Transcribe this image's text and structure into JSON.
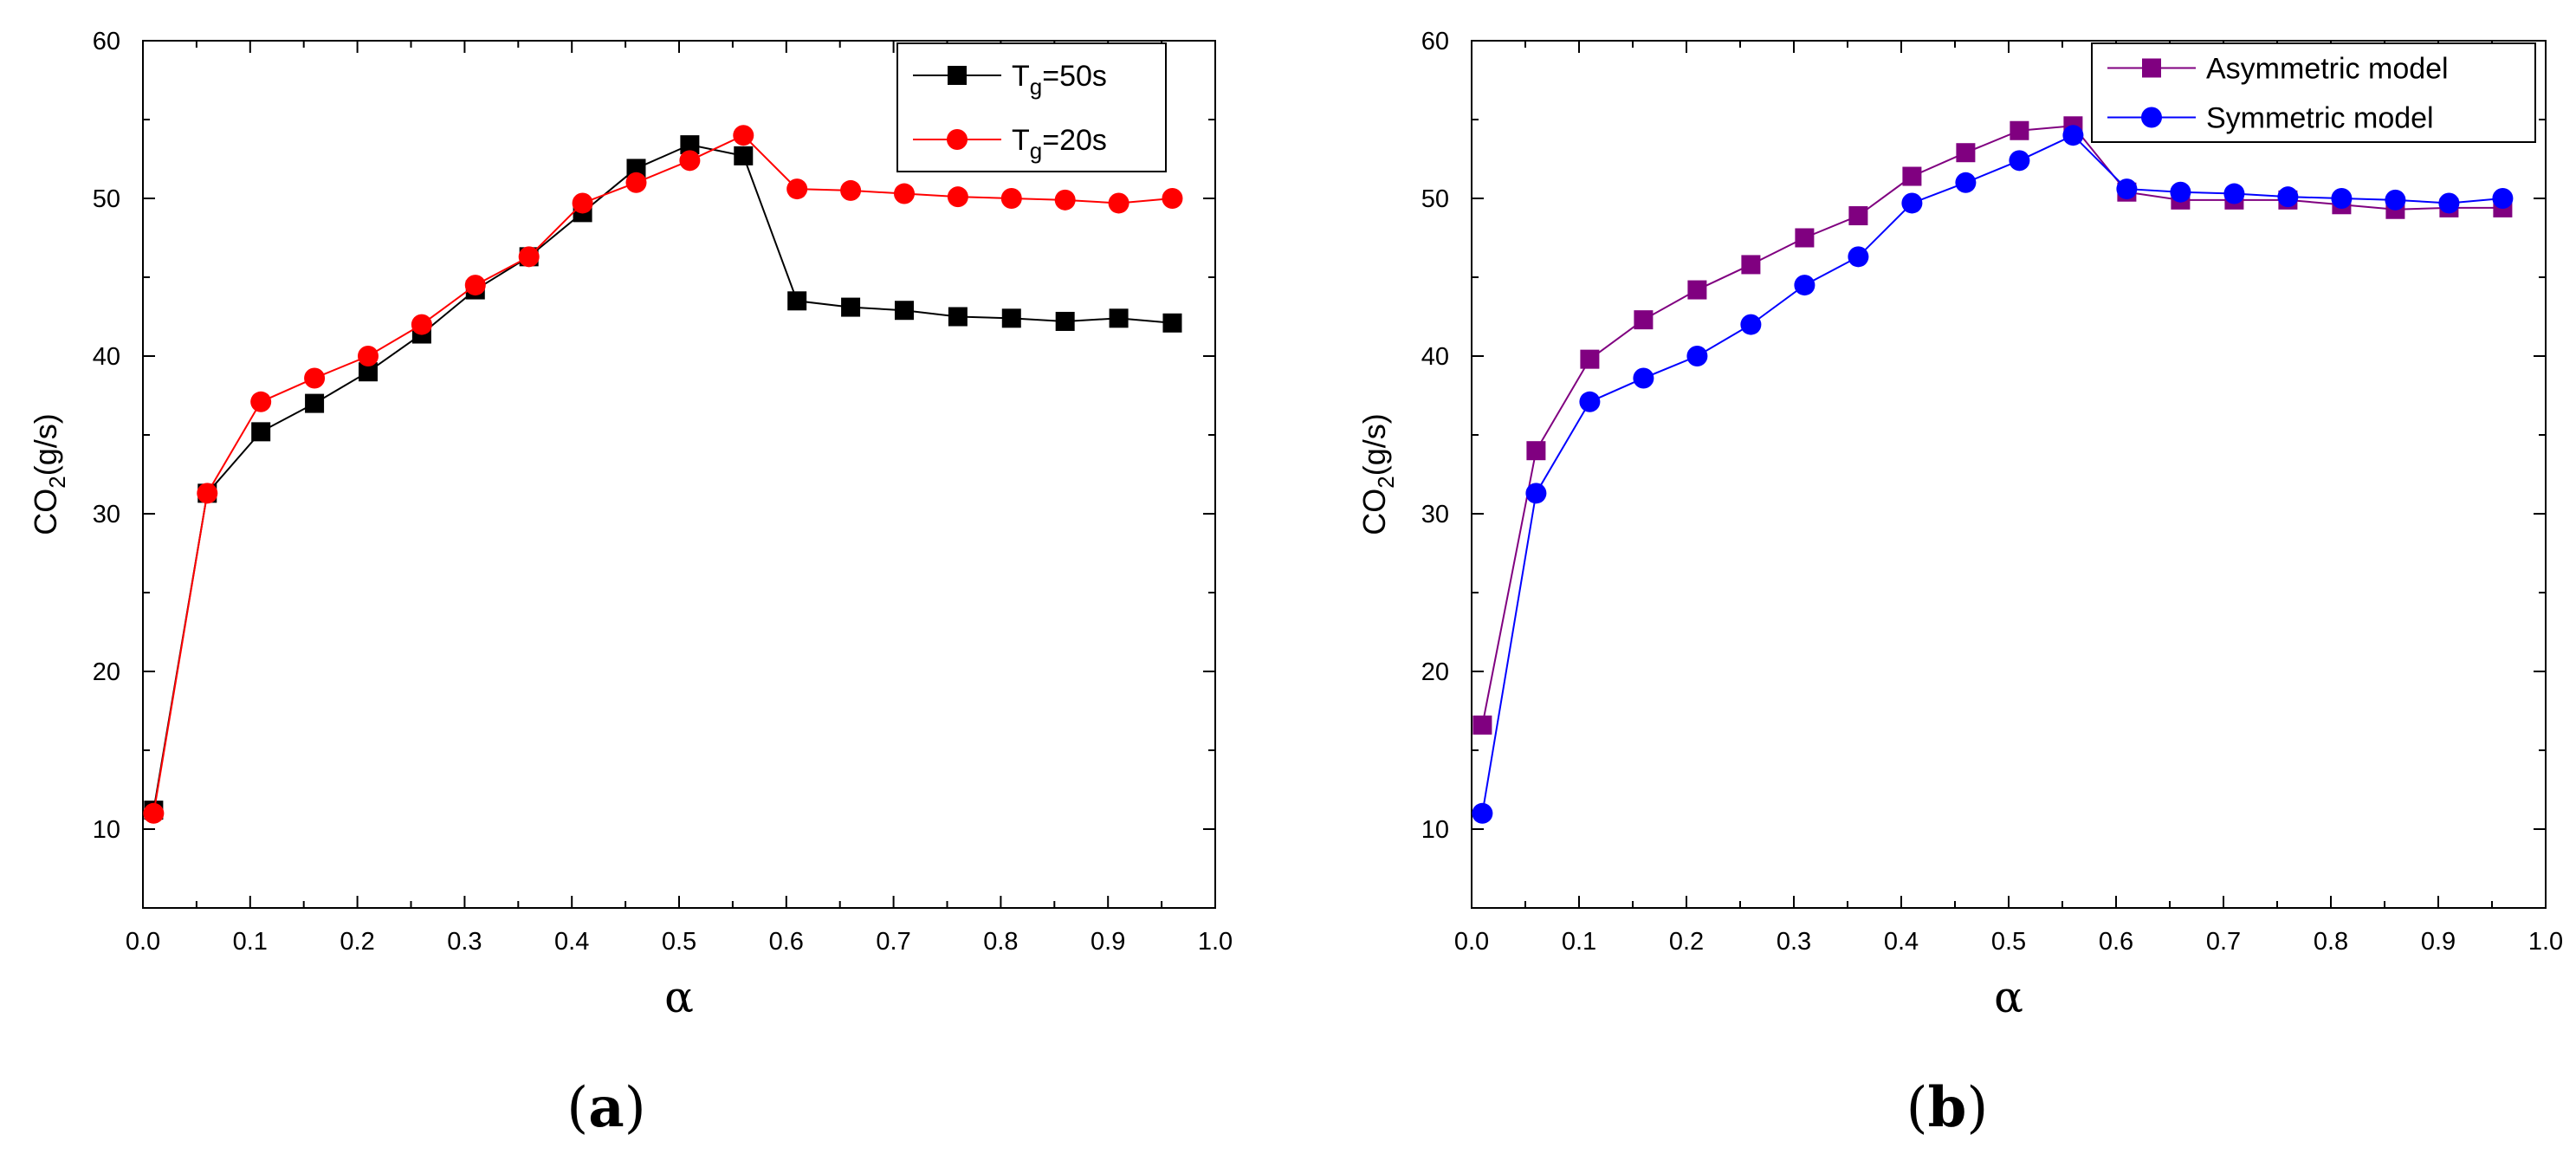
{
  "chart_data": [
    {
      "type": "line",
      "panel_label": "(a)",
      "panel_open": "(",
      "panel_letter": "a",
      "panel_close": ")",
      "xlabel": "α",
      "ylabel": "CO",
      "ylabel_sub": "2",
      "ylabel_unit": "(g/s)",
      "xlim": [
        0.0,
        1.0
      ],
      "ylim": [
        5,
        60
      ],
      "xticks": [
        "0.0",
        "0.1",
        "0.2",
        "0.3",
        "0.4",
        "0.5",
        "0.6",
        "0.7",
        "0.8",
        "0.9",
        "1.0"
      ],
      "yticks": [
        "10",
        "20",
        "30",
        "40",
        "50",
        "60"
      ],
      "legend_position": "top-right",
      "x": [
        0.01,
        0.06,
        0.11,
        0.16,
        0.21,
        0.26,
        0.31,
        0.36,
        0.41,
        0.46,
        0.51,
        0.56,
        0.61,
        0.66,
        0.71,
        0.76,
        0.81,
        0.86,
        0.91,
        0.96
      ],
      "series": [
        {
          "name": "Tg=50s",
          "legend_main": "T",
          "legend_sub": "g",
          "legend_rest": "=50s",
          "color": "#000000",
          "marker": "square",
          "values": [
            11.2,
            31.3,
            35.2,
            37.0,
            39.0,
            41.4,
            44.2,
            46.3,
            49.1,
            51.9,
            53.4,
            52.7,
            43.5,
            43.1,
            42.9,
            42.5,
            42.4,
            42.2,
            42.4,
            42.1
          ]
        },
        {
          "name": "Tg=20s",
          "legend_main": "T",
          "legend_sub": "g",
          "legend_rest": "=20s",
          "color": "#ff0000",
          "marker": "circle",
          "values": [
            11.0,
            31.3,
            37.1,
            38.6,
            40.0,
            42.0,
            44.5,
            46.3,
            49.7,
            51.0,
            52.4,
            54.0,
            50.6,
            50.5,
            50.3,
            50.1,
            50.0,
            49.9,
            49.7,
            50.0
          ]
        }
      ]
    },
    {
      "type": "line",
      "panel_label": "(b)",
      "panel_open": "(",
      "panel_letter": "b",
      "panel_close": ")",
      "xlabel": "α",
      "ylabel": "CO",
      "ylabel_sub": "2",
      "ylabel_unit": "(g/s)",
      "xlim": [
        0.0,
        1.0
      ],
      "ylim": [
        5,
        60
      ],
      "xticks": [
        "0.0",
        "0.1",
        "0.2",
        "0.3",
        "0.4",
        "0.5",
        "0.6",
        "0.7",
        "0.8",
        "0.9",
        "1.0"
      ],
      "yticks": [
        "10",
        "20",
        "30",
        "40",
        "50",
        "60"
      ],
      "legend_position": "top-right",
      "x": [
        0.01,
        0.06,
        0.11,
        0.16,
        0.21,
        0.26,
        0.31,
        0.36,
        0.41,
        0.46,
        0.51,
        0.56,
        0.61,
        0.66,
        0.71,
        0.76,
        0.81,
        0.86,
        0.91,
        0.96
      ],
      "series": [
        {
          "name": "Asymmetric model",
          "legend_main": "Asymmetric model",
          "legend_sub": "",
          "legend_rest": "",
          "color": "#800080",
          "marker": "square",
          "values": [
            16.6,
            34.0,
            39.8,
            42.3,
            44.2,
            45.8,
            47.5,
            48.9,
            51.4,
            52.9,
            54.3,
            54.6,
            50.4,
            49.9,
            49.9,
            49.9,
            49.6,
            49.3,
            49.4,
            49.4
          ]
        },
        {
          "name": "Symmetric model",
          "legend_main": "Symmetric model",
          "legend_sub": "",
          "legend_rest": "",
          "color": "#0000ff",
          "marker": "circle",
          "values": [
            11.0,
            31.3,
            37.1,
            38.6,
            40.0,
            42.0,
            44.5,
            46.3,
            49.7,
            51.0,
            52.4,
            54.0,
            50.6,
            50.4,
            50.3,
            50.1,
            50.0,
            49.9,
            49.7,
            50.0
          ]
        }
      ]
    }
  ]
}
